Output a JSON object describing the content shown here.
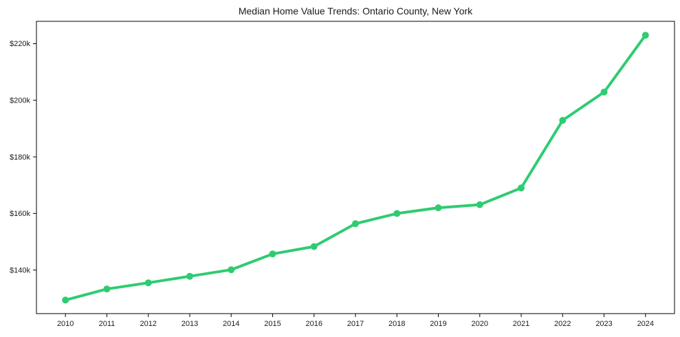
{
  "chart_data": {
    "type": "line",
    "title": "Median Home Value Trends: Ontario County, New York",
    "x": [
      2010,
      2011,
      2012,
      2013,
      2014,
      2015,
      2016,
      2017,
      2018,
      2019,
      2020,
      2021,
      2022,
      2023,
      2024
    ],
    "x_tick_labels": [
      "2010",
      "2011",
      "2012",
      "2013",
      "2014",
      "2015",
      "2016",
      "2017",
      "2018",
      "2019",
      "2020",
      "2021",
      "2022",
      "2023",
      "2024"
    ],
    "series": [
      {
        "name": "Median Home Value",
        "color": "#2ecc71",
        "values": [
          129400,
          133300,
          135500,
          137800,
          140100,
          145700,
          148300,
          156400,
          160000,
          162000,
          163100,
          169000,
          192900,
          202900,
          223000
        ]
      }
    ],
    "y_ticks": [
      140000,
      160000,
      180000,
      200000,
      220000
    ],
    "y_tick_labels": [
      "$140k",
      "$160k",
      "$180k",
      "$200k",
      "$220k"
    ],
    "xlim": [
      2009.3,
      2024.7
    ],
    "ylim": [
      124600,
      227900
    ],
    "xlabel": "",
    "ylabel": "",
    "grid": false,
    "legend": "none",
    "marker": "circle",
    "line_width": 4,
    "marker_radius": 5,
    "background_color": "#ffffff",
    "spine_color": "#000000",
    "text_color": "#1a1a1a"
  }
}
